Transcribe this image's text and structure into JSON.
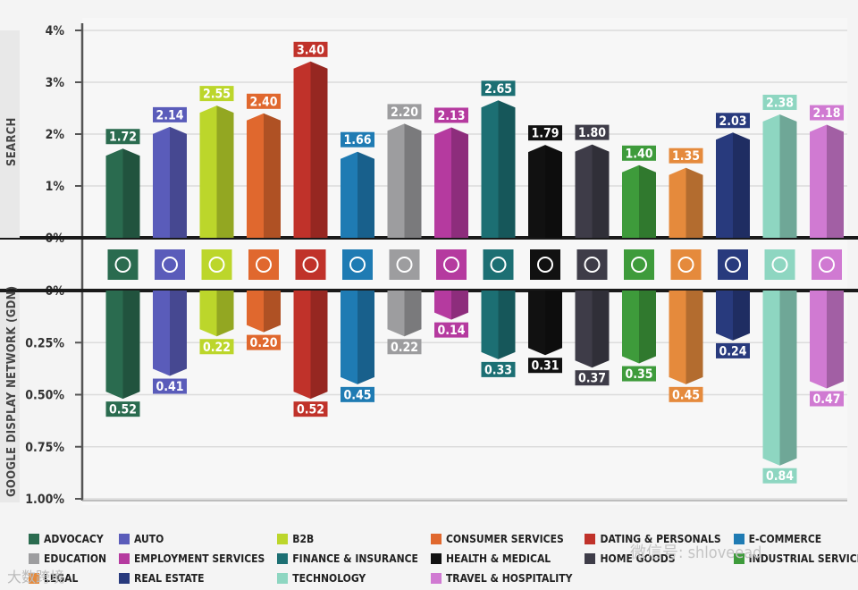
{
  "chart_data": {
    "type": "bar",
    "top_axis_label": "SEARCH",
    "bottom_axis_label": "GOOGLE DISPLAY NETWORK (GDN)",
    "search_ticks": [
      "4%",
      "3%",
      "2%",
      "1%",
      "0%"
    ],
    "gdn_ticks": [
      "0%",
      "0.25%",
      "0.50%",
      "0.75%",
      "1.00%"
    ],
    "search_ylim": [
      0,
      4
    ],
    "gdn_ylim": [
      0,
      1
    ],
    "categories": [
      "ADVOCACY",
      "AUTO",
      "B2B",
      "CONSUMER SERVICES",
      "DATING & PERSONALS",
      "E-COMMERCE",
      "EDUCATION",
      "EMPLOYMENT SERVICES",
      "FINANCE & INSURANCE",
      "HEALTH & MEDICAL",
      "HOME GOODS",
      "INDUSTRIAL SERVICES",
      "LEGAL",
      "REAL ESTATE",
      "TECHNOLOGY",
      "TRAVEL & HOSPITALITY"
    ],
    "series": [
      {
        "name": "Search",
        "values": [
          1.72,
          2.14,
          2.55,
          2.4,
          3.4,
          1.66,
          2.2,
          2.13,
          2.65,
          1.79,
          1.8,
          1.4,
          1.35,
          2.03,
          2.38,
          2.18
        ],
        "labels": [
          "1.72",
          "2.14",
          "2.55",
          "2.40",
          "3.40",
          "1.66",
          "2.20",
          "2.13",
          "2.65",
          "1.79",
          "1.80",
          "1.40",
          "1.35",
          "2.03",
          "2.38",
          "2.18"
        ]
      },
      {
        "name": "Google Display Network (GDN)",
        "values": [
          0.52,
          0.41,
          0.22,
          0.2,
          0.52,
          0.45,
          0.22,
          0.14,
          0.33,
          0.31,
          0.37,
          0.35,
          0.45,
          0.24,
          0.84,
          0.47
        ],
        "labels": [
          "0.52",
          "0.41",
          "0.22",
          "0.20",
          "0.52",
          "0.45",
          "0.22",
          "0.14",
          "0.33",
          "0.31",
          "0.37",
          "0.35",
          "0.45",
          "0.24",
          "0.84",
          "0.47"
        ]
      }
    ],
    "colors": [
      "#2a6b4f",
      "#5a5cba",
      "#bcd62b",
      "#e0682e",
      "#c0322a",
      "#1f7bb3",
      "#9d9d9f",
      "#b53a9f",
      "#1c6f73",
      "#111111",
      "#3e3c48",
      "#3e9b3b",
      "#e58a3c",
      "#283a7d",
      "#8ed6c1",
      "#d07ad2"
    ],
    "icons": [
      "globe-hands-icon",
      "car-icon",
      "handshake-icon",
      "headset-icon",
      "heart-icon",
      "cart-icon",
      "book-icon",
      "briefcase-icon",
      "money-bag-icon",
      "medical-kit-icon",
      "lamp-icon",
      "tools-icon",
      "gavel-icon",
      "house-icon",
      "laptop-icon",
      "map-pin-icon"
    ],
    "legend": [
      "ADVOCACY",
      "AUTO",
      "B2B",
      "CONSUMER SERVICES",
      "DATING & PERSONALS",
      "E-COMMERCE",
      "EDUCATION",
      "EMPLOYMENT SERVICES",
      "FINANCE & INSURANCE",
      "HEALTH & MEDICAL",
      "HOME GOODS",
      "INDUSTRIAL SERVICES",
      "LEGAL",
      "REAL ESTATE",
      "TECHNOLOGY",
      "TRAVEL & HOSPITALITY"
    ]
  },
  "watermark": "大数跨境",
  "watermark2": "微信号: shloveead"
}
